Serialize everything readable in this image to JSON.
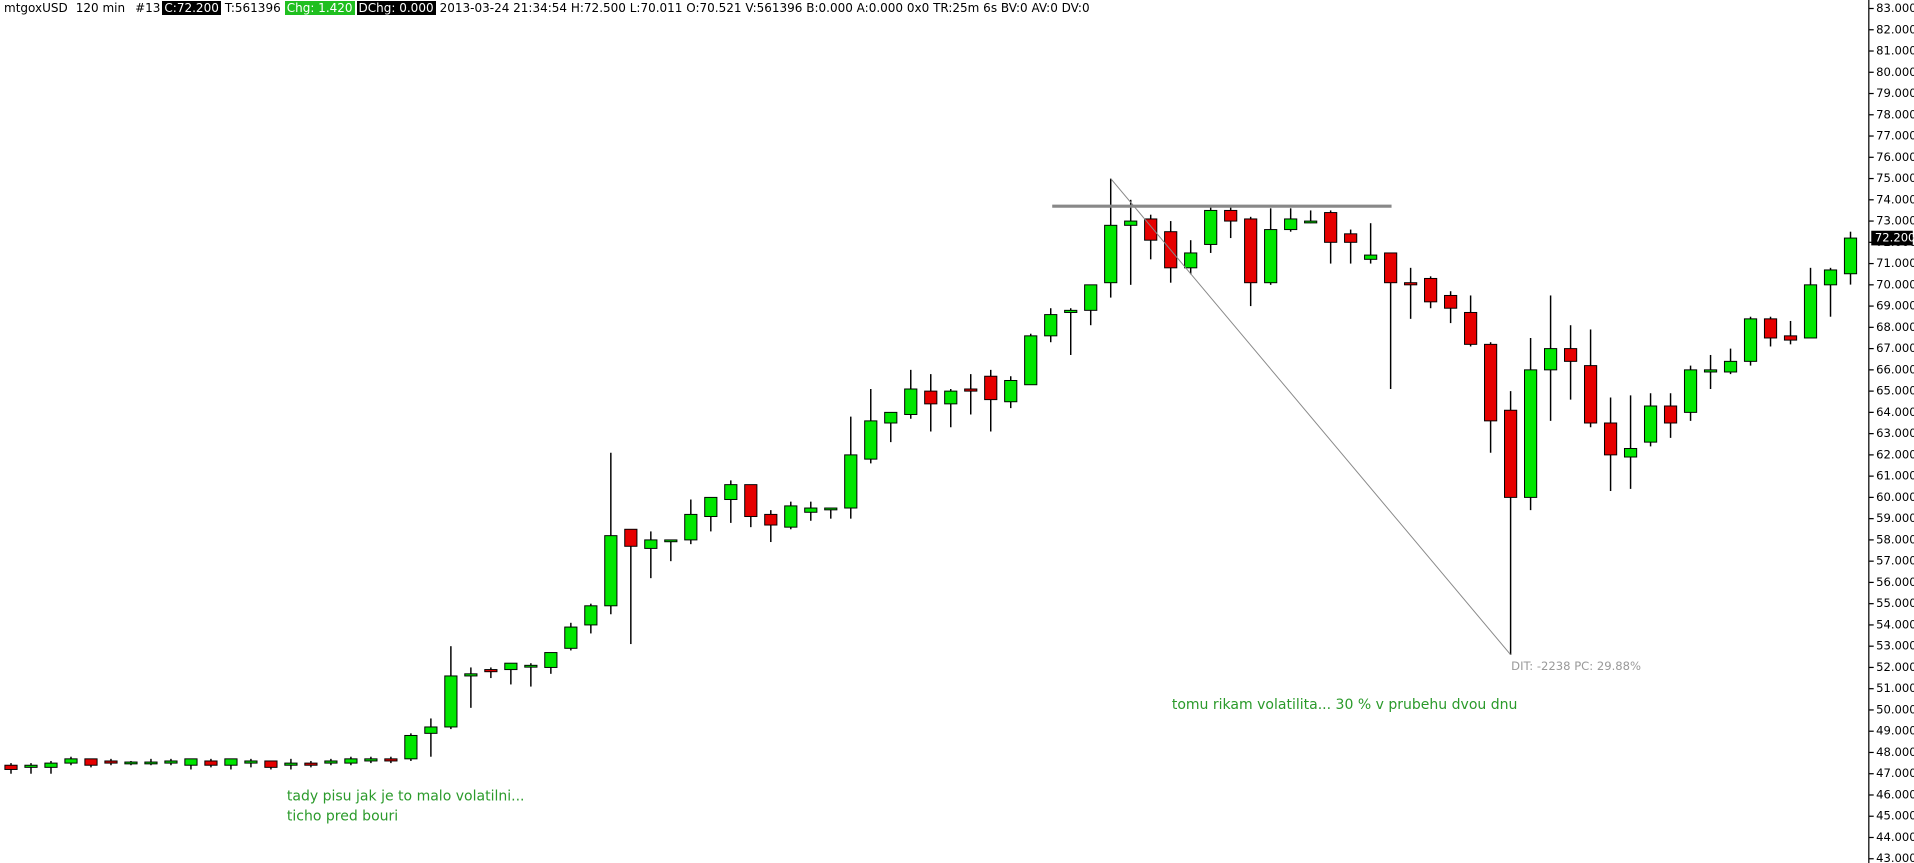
{
  "chart_data": {
    "type": "candlestick",
    "header": [
      "mtgoxUSD",
      "120 min",
      "#13",
      "C:72.200",
      "T:561396",
      "Chg: 1.420",
      "DChg: 0.000",
      "2013-03-24 21:34:54 H:72.500 L:70.011 O:70.521 V:561396 B:0.000 A:0.000 0x0 TR:25m 6s BV:0 AV:0 DV:0"
    ],
    "annotations": [
      "tady pisu jak je to malo volatilni...",
      "ticho pred bouri",
      "tomu rikam volatilita... 30 % v prubehu dvou dnu"
    ],
    "measure_label": "DIT: -2238  PC: 29.88%",
    "up_color": "#00e600",
    "down_color": "#e60000",
    "open": [
      47.4,
      47.3,
      47.3,
      47.5,
      47.7,
      47.6,
      47.5,
      47.5,
      47.5,
      47.4,
      47.6,
      47.4,
      47.5,
      47.6,
      47.4,
      47.5,
      47.5,
      47.5,
      47.6,
      47.7,
      47.7,
      48.9,
      49.2,
      51.6,
      51.9,
      51.9,
      52.1,
      52.0,
      52.9,
      54.0,
      54.9,
      58.5,
      57.6,
      58.0,
      58.0,
      59.1,
      59.9,
      60.6,
      59.2,
      58.6,
      59.3,
      59.5,
      59.5,
      61.8,
      63.5,
      63.9,
      65.0,
      64.4,
      65.1,
      65.7,
      64.5,
      65.3,
      67.6,
      68.7,
      68.8,
      70.1,
      72.8,
      73.1,
      72.5,
      70.8,
      71.9,
      73.5,
      73.1,
      70.1,
      72.6,
      73.0,
      73.4,
      72.4,
      71.2,
      71.5,
      70.1,
      70.3,
      69.5,
      68.7,
      67.2,
      64.1,
      60.0,
      66.0,
      67.0,
      66.2,
      63.5,
      61.9,
      62.6,
      64.3,
      64.0,
      65.9,
      65.9,
      66.4,
      68.4,
      67.6,
      67.5,
      70.0,
      70.521
    ],
    "high": [
      47.5,
      47.5,
      47.6,
      47.8,
      47.7,
      47.7,
      47.6,
      47.7,
      47.7,
      47.7,
      47.7,
      47.7,
      47.7,
      47.6,
      47.7,
      47.6,
      47.7,
      47.8,
      47.8,
      47.8,
      48.9,
      49.6,
      53.0,
      52.0,
      52.0,
      52.2,
      52.2,
      52.7,
      54.1,
      55.0,
      62.1,
      58.5,
      58.4,
      58.0,
      59.9,
      60.0,
      60.8,
      60.6,
      59.4,
      59.8,
      59.8,
      59.5,
      63.8,
      65.1,
      64.0,
      66.0,
      65.8,
      65.1,
      65.8,
      66.0,
      65.7,
      67.7,
      68.9,
      68.9,
      70.0,
      75.0,
      74.0,
      73.3,
      73.0,
      72.1,
      73.7,
      73.7,
      73.2,
      73.6,
      73.6,
      73.5,
      73.5,
      72.6,
      72.9,
      71.5,
      70.8,
      70.4,
      69.7,
      69.5,
      67.3,
      65.0,
      67.5,
      69.5,
      68.1,
      67.9,
      64.7,
      64.8,
      64.9,
      64.9,
      66.2,
      66.7,
      67.0,
      68.5,
      68.5,
      68.3,
      70.8,
      70.8,
      72.5
    ],
    "low": [
      47.0,
      47.0,
      47.0,
      47.4,
      47.3,
      47.4,
      47.4,
      47.4,
      47.4,
      47.2,
      47.3,
      47.2,
      47.3,
      47.2,
      47.2,
      47.3,
      47.4,
      47.4,
      47.5,
      47.5,
      47.6,
      47.8,
      49.1,
      50.1,
      51.5,
      51.2,
      51.1,
      51.7,
      52.8,
      53.6,
      54.5,
      53.1,
      56.2,
      57.0,
      57.8,
      58.4,
      58.8,
      58.6,
      57.9,
      58.5,
      58.9,
      59.0,
      59.0,
      61.6,
      62.6,
      63.7,
      63.1,
      63.3,
      63.9,
      63.1,
      64.2,
      65.3,
      67.3,
      66.7,
      68.1,
      69.4,
      70.0,
      71.2,
      70.1,
      70.5,
      71.5,
      72.2,
      69.0,
      70.0,
      72.5,
      72.9,
      71.0,
      71.0,
      71.0,
      65.1,
      68.4,
      68.9,
      68.2,
      67.1,
      62.1,
      52.6,
      59.4,
      63.6,
      64.6,
      63.3,
      60.3,
      60.4,
      62.4,
      62.8,
      63.6,
      65.1,
      65.8,
      66.2,
      67.1,
      67.2,
      67.5,
      68.5,
      70.011
    ],
    "close": [
      47.2,
      47.4,
      47.5,
      47.7,
      47.4,
      47.5,
      47.55,
      47.55,
      47.6,
      47.7,
      47.4,
      47.7,
      47.6,
      47.3,
      47.5,
      47.4,
      47.6,
      47.7,
      47.7,
      47.6,
      48.8,
      49.2,
      51.6,
      51.7,
      51.8,
      52.2,
      52.1,
      52.7,
      53.9,
      54.9,
      58.2,
      57.7,
      58.0,
      58.0,
      59.2,
      60.0,
      60.6,
      59.1,
      58.7,
      59.6,
      59.5,
      59.5,
      62.0,
      63.6,
      64.0,
      65.1,
      64.4,
      65.0,
      65.0,
      64.6,
      65.5,
      67.6,
      68.6,
      68.8,
      70.0,
      72.8,
      73.0,
      72.1,
      70.8,
      71.5,
      73.5,
      73.0,
      70.1,
      72.6,
      73.1,
      73.0,
      72.0,
      72.0,
      71.4,
      70.1,
      70.0,
      69.2,
      68.9,
      67.2,
      63.6,
      60.0,
      66.0,
      67.0,
      66.4,
      63.5,
      62.0,
      62.3,
      64.3,
      63.5,
      66.0,
      66.0,
      66.4,
      68.4,
      67.5,
      67.4,
      70.0,
      70.7,
      72.2
    ],
    "resistance_level": 73.7,
    "last_price": {
      "value": 72.2,
      "label": "72.200"
    },
    "ylim": [
      42.8,
      83.4
    ],
    "yticks": [
      {
        "value": 83,
        "label": "83.000"
      },
      {
        "value": 82,
        "label": "82.000"
      },
      {
        "value": 81,
        "label": "81.000"
      },
      {
        "value": 80,
        "label": "80.000"
      },
      {
        "value": 79,
        "label": "79.000"
      },
      {
        "value": 78,
        "label": "78.000"
      },
      {
        "value": 77,
        "label": "77.000"
      },
      {
        "value": 76,
        "label": "76.000"
      },
      {
        "value": 75,
        "label": "75.000"
      },
      {
        "value": 74,
        "label": "74.000"
      },
      {
        "value": 73,
        "label": "73.000"
      },
      {
        "value": 72,
        "label": "72.000"
      },
      {
        "value": 71,
        "label": "71.000"
      },
      {
        "value": 70,
        "label": "70.000"
      },
      {
        "value": 69,
        "label": "69.000"
      },
      {
        "value": 68,
        "label": "68.000"
      },
      {
        "value": 67,
        "label": "67.000"
      },
      {
        "value": 66,
        "label": "66.000"
      },
      {
        "value": 65,
        "label": "65.000"
      },
      {
        "value": 64,
        "label": "64.000"
      },
      {
        "value": 63,
        "label": "63.000"
      },
      {
        "value": 62,
        "label": "62.000"
      },
      {
        "value": 61,
        "label": "61.000"
      },
      {
        "value": 60,
        "label": "60.000"
      },
      {
        "value": 59,
        "label": "59.000"
      },
      {
        "value": 58,
        "label": "58.000"
      },
      {
        "value": 57,
        "label": "57.000"
      },
      {
        "value": 56,
        "label": "56.000"
      },
      {
        "value": 55,
        "label": "55.000"
      },
      {
        "value": 54,
        "label": "54.000"
      },
      {
        "value": 53,
        "label": "53.000"
      },
      {
        "value": 52,
        "label": "52.000"
      },
      {
        "value": 51,
        "label": "51.000"
      },
      {
        "value": 50,
        "label": "50.000"
      },
      {
        "value": 49,
        "label": "49.000"
      },
      {
        "value": 48,
        "label": "48.000"
      },
      {
        "value": 47,
        "label": "47.000"
      },
      {
        "value": 46,
        "label": "46.000"
      },
      {
        "value": 45,
        "label": "45.000"
      },
      {
        "value": 44,
        "label": "44.000"
      },
      {
        "value": 43,
        "label": "43.000"
      }
    ]
  }
}
